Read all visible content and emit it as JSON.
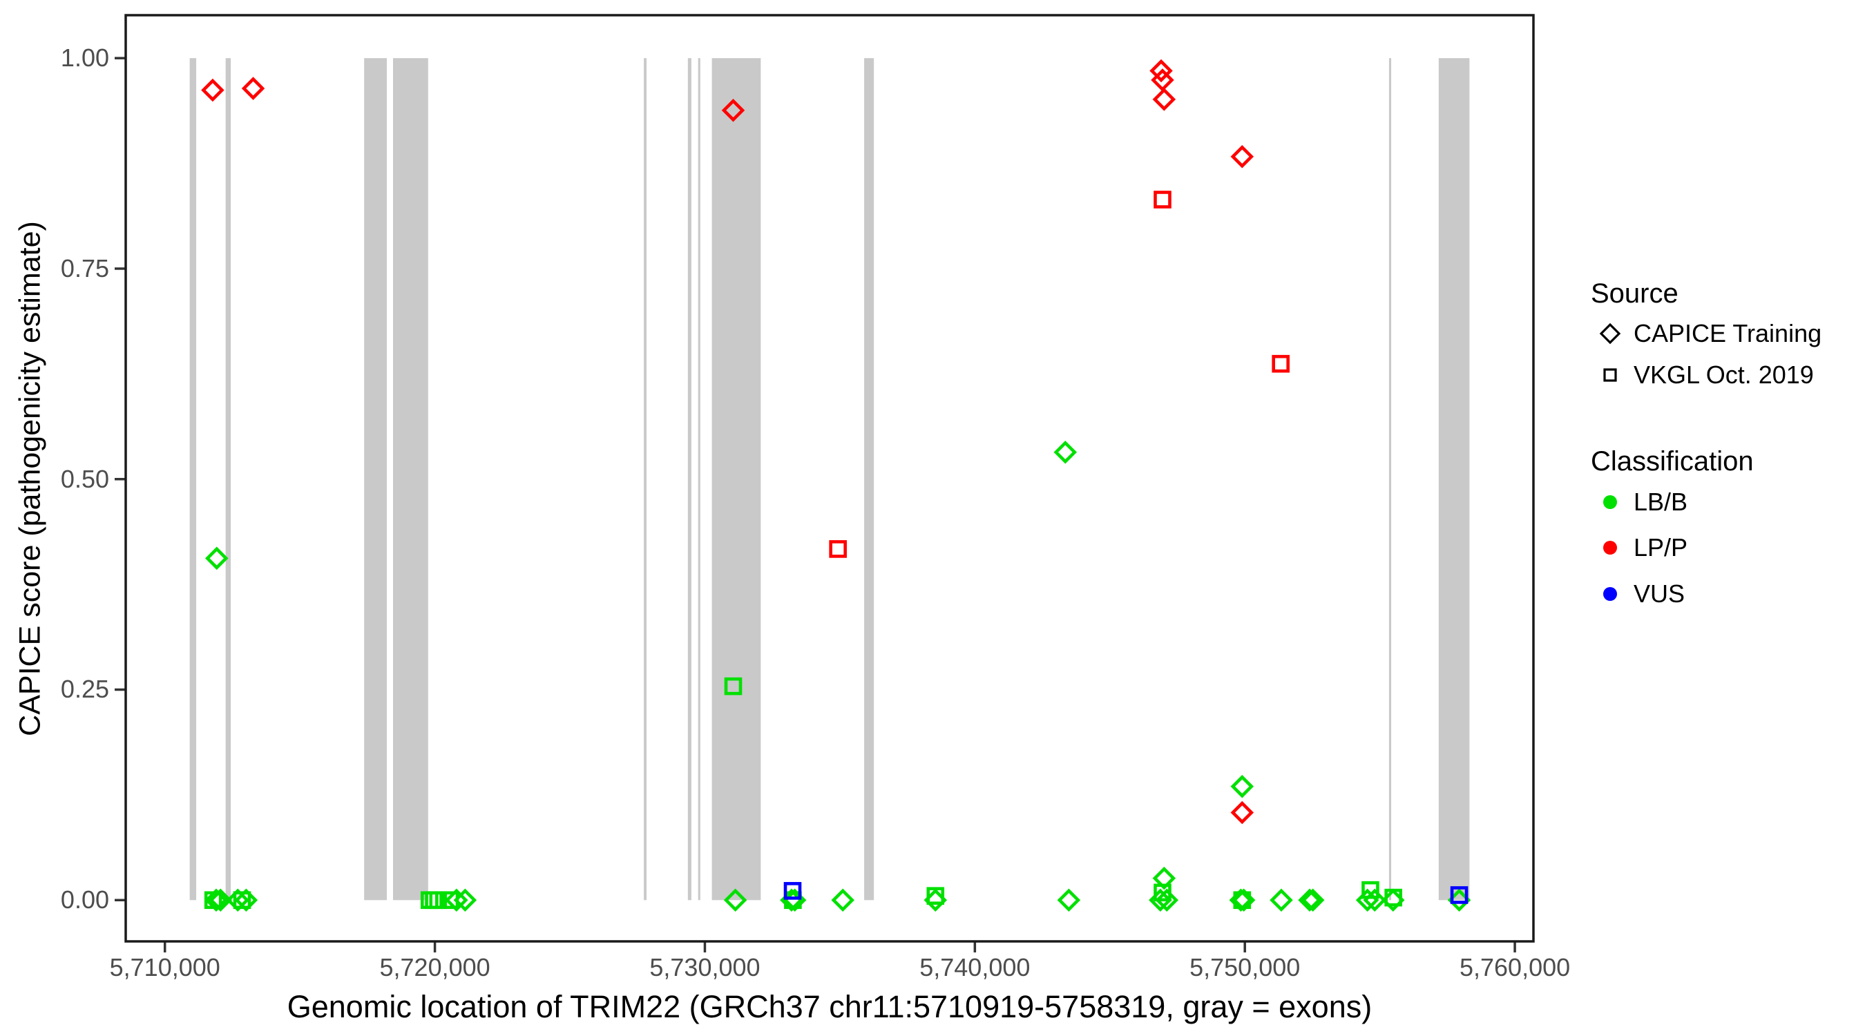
{
  "figure": {
    "x_axis_title": "Genomic location of TRIM22 (GRCh37 chr11:5710919-5758319, gray = exons)",
    "y_axis_title": "CAPICE score (pathogenicity estimate)"
  },
  "legend": {
    "source": {
      "title": "Source",
      "items": [
        {
          "label": "CAPICE Training",
          "marker": "diamond"
        },
        {
          "label": "VKGL Oct. 2019",
          "marker": "square"
        }
      ]
    },
    "classification": {
      "title": "Classification",
      "items": [
        {
          "label": "LB/B",
          "color": "#00E000"
        },
        {
          "label": "LP/P",
          "color": "#FF0000"
        },
        {
          "label": "VUS",
          "color": "#0000FF"
        }
      ]
    }
  },
  "colors": {
    "exon": "#C9C9C9",
    "panel_border": "#1a1a1a",
    "tick_mark": "#333333",
    "tick_text": "#4d4d4d",
    "lbb": "#00E000",
    "lpp": "#FF0000",
    "vus": "#0000FF"
  },
  "chart_data": {
    "type": "scatter",
    "title": "",
    "xlabel": "Genomic location of TRIM22 (GRCh37 chr11:5710919-5758319, gray = exons)",
    "ylabel": "CAPICE score (pathogenicity estimate)",
    "x_axis": {
      "range": [
        5708549,
        5760689
      ],
      "ticks": [
        5710000,
        5720000,
        5730000,
        5740000,
        5750000,
        5760000
      ],
      "tick_labels": [
        "5,710,000",
        "5,720,000",
        "5,730,000",
        "5,740,000",
        "5,750,000",
        "5,760,000"
      ]
    },
    "y_axis": {
      "range": [
        -0.049,
        1.051
      ],
      "ticks": [
        0,
        0.25,
        0.5,
        0.75,
        1
      ],
      "tick_labels": [
        "0.00",
        "0.25",
        "0.50",
        "0.75",
        "1.00"
      ]
    },
    "grid": false,
    "legend_position": "right",
    "exon_y_span": [
      0,
      1
    ],
    "exons_gray_regions": [
      [
        5710919,
        5711160
      ],
      [
        5712250,
        5712440
      ],
      [
        5717380,
        5718220
      ],
      [
        5718450,
        5719750
      ],
      [
        5727740,
        5727840
      ],
      [
        5729370,
        5729500
      ],
      [
        5729750,
        5729830
      ],
      [
        5730260,
        5732070
      ],
      [
        5735900,
        5736260
      ],
      [
        5755340,
        5755420
      ],
      [
        5757180,
        5758319
      ]
    ],
    "series": [
      {
        "name": "CAPICE Training / LB/B",
        "source": "CAPICE Training",
        "classification": "LB/B",
        "marker": "diamond",
        "color": "#00E000",
        "points": [
          [
            5711920,
            0.406
          ],
          [
            5743350,
            0.532
          ],
          [
            5749900,
            0.135
          ],
          [
            5747010,
            0.026
          ],
          [
            5711900,
            0.0
          ],
          [
            5712060,
            0.0
          ],
          [
            5712700,
            0.0
          ],
          [
            5713010,
            0.0
          ],
          [
            5720800,
            0.0
          ],
          [
            5721120,
            0.0
          ],
          [
            5731130,
            0.0
          ],
          [
            5733210,
            0.0
          ],
          [
            5733330,
            0.0
          ],
          [
            5735110,
            0.0
          ],
          [
            5738540,
            0.0
          ],
          [
            5743480,
            0.0
          ],
          [
            5746870,
            0.0
          ],
          [
            5747110,
            0.0
          ],
          [
            5749850,
            0.0
          ],
          [
            5749960,
            0.0
          ],
          [
            5751350,
            0.0
          ],
          [
            5752400,
            0.0
          ],
          [
            5752520,
            0.0
          ],
          [
            5754540,
            0.0
          ],
          [
            5754810,
            0.0
          ],
          [
            5755490,
            0.0
          ],
          [
            5757940,
            0.0
          ]
        ]
      },
      {
        "name": "VKGL Oct. 2019 / LB/B",
        "source": "VKGL Oct. 2019",
        "classification": "LB/B",
        "marker": "square",
        "color": "#00E000",
        "points": [
          [
            5731050,
            0.254
          ],
          [
            5711790,
            0.0
          ],
          [
            5712860,
            0.0
          ],
          [
            5719800,
            0.0
          ],
          [
            5719960,
            0.0
          ],
          [
            5720120,
            0.0
          ],
          [
            5720560,
            0.0
          ],
          [
            5733260,
            0.0
          ],
          [
            5738540,
            0.005
          ],
          [
            5746950,
            0.009
          ],
          [
            5749900,
            0.0
          ],
          [
            5754650,
            0.012
          ],
          [
            5755500,
            0.003
          ]
        ]
      },
      {
        "name": "CAPICE Training / LP/P",
        "source": "CAPICE Training",
        "classification": "LP/P",
        "marker": "diamond",
        "color": "#FF0000",
        "points": [
          [
            5711770,
            0.962
          ],
          [
            5713270,
            0.964
          ],
          [
            5731050,
            0.938
          ],
          [
            5746900,
            0.985
          ],
          [
            5746950,
            0.974
          ],
          [
            5747010,
            0.951
          ],
          [
            5749900,
            0.883
          ],
          [
            5749900,
            0.104
          ]
        ]
      },
      {
        "name": "VKGL Oct. 2019 / LP/P",
        "source": "VKGL Oct. 2019",
        "classification": "LP/P",
        "marker": "square",
        "color": "#FF0000",
        "points": [
          [
            5734930,
            0.417
          ],
          [
            5746950,
            0.832
          ],
          [
            5751330,
            0.637
          ]
        ]
      },
      {
        "name": "VKGL Oct. 2019 / VUS",
        "source": "VKGL Oct. 2019",
        "classification": "VUS",
        "marker": "square",
        "color": "#0000FF",
        "points": [
          [
            5733250,
            0.011
          ],
          [
            5757940,
            0.006
          ]
        ]
      }
    ]
  }
}
